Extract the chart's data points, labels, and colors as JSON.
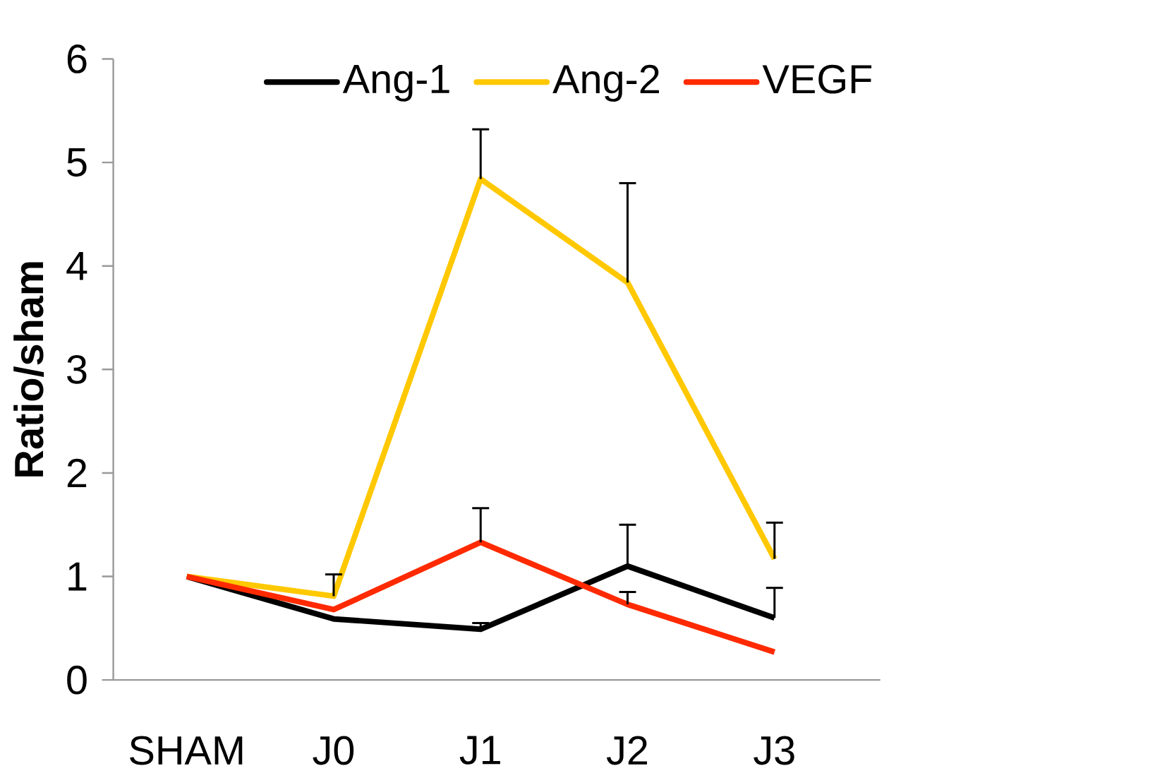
{
  "chart_data": {
    "type": "line",
    "ylabel": "Ratio/sham",
    "categories": [
      "SHAM",
      "J0",
      "J1",
      "J2",
      "J3"
    ],
    "series": [
      {
        "name": "Ang-1",
        "color": "#000000",
        "values": [
          1,
          0.59,
          0.49,
          1.1,
          0.6
        ],
        "errors": [
          null,
          null,
          [
            0.49,
            0.55
          ],
          [
            1.1,
            1.5
          ],
          [
            0.6,
            0.89
          ]
        ]
      },
      {
        "name": "Ang-2",
        "color": "#ffc800",
        "values": [
          1,
          0.81,
          4.84,
          3.84,
          1.17
        ],
        "errors": [
          null,
          [
            0.81,
            1.02
          ],
          [
            4.84,
            5.32
          ],
          [
            3.84,
            4.8
          ],
          [
            1.17,
            1.52
          ]
        ]
      },
      {
        "name": "VEGF",
        "color": "#ff2a00",
        "values": [
          1,
          0.68,
          1.33,
          0.73,
          0.27
        ],
        "errors": [
          null,
          null,
          [
            1.33,
            1.66
          ],
          [
            0.73,
            0.85
          ],
          null
        ]
      }
    ],
    "ylim": [
      0,
      6
    ],
    "yticks": [
      0,
      1,
      2,
      3,
      4,
      5,
      6
    ],
    "grid": false,
    "legend": "top right",
    "marker": "none",
    "line_style": "solid"
  }
}
